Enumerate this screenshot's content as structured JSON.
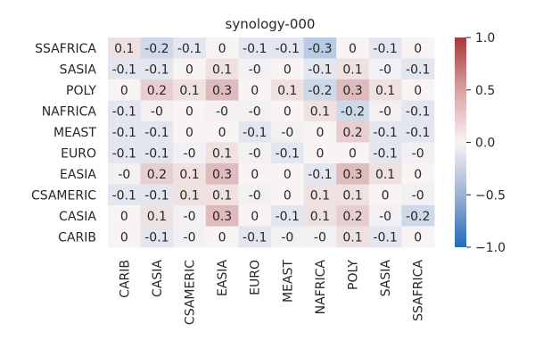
{
  "chart_data": {
    "type": "heatmap",
    "title": "synology-000",
    "xlabel": "",
    "ylabel": "",
    "columns": [
      "CARIB",
      "CASIA",
      "CSAMERIC",
      "EASIA",
      "EURO",
      "MEAST",
      "NAFRICA",
      "POLY",
      "SASIA",
      "SSAFRICA"
    ],
    "rows": [
      "SSAFRICA",
      "SASIA",
      "POLY",
      "NAFRICA",
      "MEAST",
      "EURO",
      "EASIA",
      "CSAMERIC",
      "CASIA",
      "CARIB"
    ],
    "values": [
      [
        0.1,
        -0.2,
        -0.1,
        0,
        -0.1,
        -0.1,
        -0.3,
        0,
        -0.1,
        0
      ],
      [
        -0.1,
        -0.1,
        0,
        0.1,
        -0.03,
        0,
        -0.1,
        0.1,
        -0.03,
        -0.1
      ],
      [
        0,
        0.2,
        0.1,
        0.3,
        0,
        0.1,
        -0.2,
        0.3,
        0.1,
        0
      ],
      [
        -0.1,
        -0.03,
        0,
        -0.03,
        -0.03,
        0,
        0.1,
        -0.2,
        -0.03,
        -0.1
      ],
      [
        -0.1,
        -0.1,
        0,
        0,
        -0.1,
        -0.03,
        0,
        0.2,
        -0.1,
        -0.1
      ],
      [
        -0.1,
        -0.1,
        -0.03,
        0.1,
        -0.03,
        -0.1,
        0,
        0,
        -0.1,
        -0.03
      ],
      [
        -0.03,
        0.2,
        0.1,
        0.3,
        0,
        0,
        -0.1,
        0.3,
        0.1,
        0
      ],
      [
        -0.1,
        -0.1,
        0.1,
        0.1,
        -0.03,
        0,
        0.1,
        0.1,
        0,
        -0.03
      ],
      [
        0,
        0.1,
        -0.03,
        0.3,
        0,
        -0.1,
        0.1,
        0.2,
        -0.03,
        -0.2
      ],
      [
        0,
        -0.1,
        -0.03,
        0,
        -0.1,
        -0.03,
        -0.03,
        0.1,
        -0.1,
        0
      ]
    ],
    "labels": [
      [
        "0.1",
        "-0.2",
        "-0.1",
        "0",
        "-0.1",
        "-0.1",
        "-0.3",
        "0",
        "-0.1",
        "0"
      ],
      [
        "-0.1",
        "-0.1",
        "0",
        "0.1",
        "-0",
        "0",
        "-0.1",
        "0.1",
        "-0",
        "-0.1"
      ],
      [
        "0",
        "0.2",
        "0.1",
        "0.3",
        "0",
        "0.1",
        "-0.2",
        "0.3",
        "0.1",
        "0"
      ],
      [
        "-0.1",
        "-0",
        "0",
        "-0",
        "-0",
        "0",
        "0.1",
        "-0.2",
        "-0",
        "-0.1"
      ],
      [
        "-0.1",
        "-0.1",
        "0",
        "0",
        "-0.1",
        "-0",
        "0",
        "0.2",
        "-0.1",
        "-0.1"
      ],
      [
        "-0.1",
        "-0.1",
        "-0",
        "0.1",
        "-0",
        "-0.1",
        "0",
        "0",
        "-0.1",
        "-0"
      ],
      [
        "-0",
        "0.2",
        "0.1",
        "0.3",
        "0",
        "0",
        "-0.1",
        "0.3",
        "0.1",
        "0"
      ],
      [
        "-0.1",
        "-0.1",
        "0.1",
        "0.1",
        "-0",
        "0",
        "0.1",
        "0.1",
        "0",
        "-0"
      ],
      [
        "0",
        "0.1",
        "-0",
        "0.3",
        "0",
        "-0.1",
        "0.1",
        "0.2",
        "-0",
        "-0.2"
      ],
      [
        "0",
        "-0.1",
        "-0",
        "0",
        "-0.1",
        "-0",
        "-0",
        "0.1",
        "-0.1",
        "0"
      ]
    ],
    "colorbar": {
      "range": [
        -1.0,
        1.0
      ],
      "ticks": [
        -1.0,
        -0.5,
        0.0,
        0.5,
        1.0
      ],
      "tick_labels": [
        "−1.0",
        "−0.5",
        "0.0",
        "0.5",
        "1.0"
      ],
      "colormap": "vlag",
      "low_color": "#2369bd",
      "mid_color": "#f8f4f4",
      "high_color": "#a9373b"
    }
  }
}
